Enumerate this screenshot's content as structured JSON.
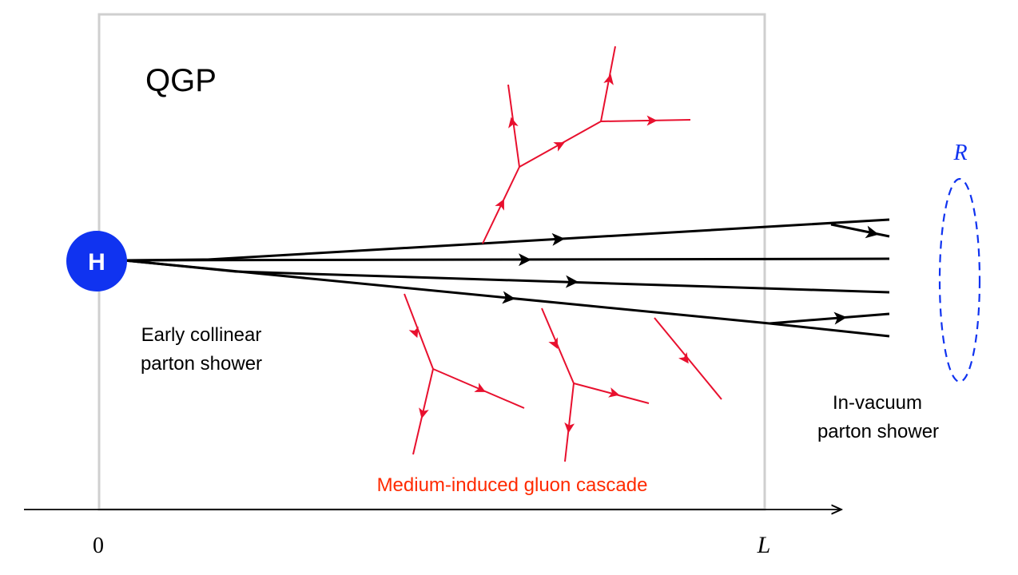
{
  "labels": {
    "qgp": "QGP",
    "hard_vertex": "H",
    "early_shower": [
      "Early collinear",
      "parton shower"
    ],
    "vacuum_shower": [
      "In-vacuum",
      "parton shower"
    ],
    "cascade": "Medium-induced gluon cascade",
    "jet_radius": "R",
    "axis_origin": "0",
    "axis_end": "L"
  },
  "colors": {
    "partons": "#000000",
    "gluons": "#e8102e",
    "cascade_label": "#ff2a00",
    "hard_vertex": "#1033f0",
    "jet_radius": "#1033f0",
    "medium_box": "#cfcfcf"
  },
  "icons": {
    "time_axis": "arrow-right-icon"
  }
}
